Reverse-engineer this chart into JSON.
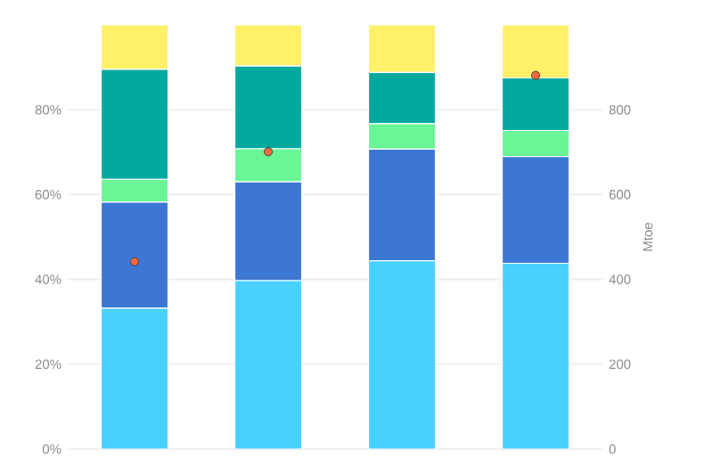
{
  "chart_data": {
    "type": "bar",
    "stacked": true,
    "categories": [
      null,
      null,
      null,
      null
    ],
    "series": [
      {
        "color": "#48d1ff",
        "values": [
          33.2,
          39.7,
          44.4,
          43.8
        ]
      },
      {
        "color": "#3d77d4",
        "values": [
          25.0,
          23.3,
          26.3,
          25.2
        ]
      },
      {
        "color": "#6af596",
        "values": [
          5.4,
          7.8,
          6.0,
          6.1
        ]
      },
      {
        "color": "#00a99d",
        "values": [
          25.9,
          19.5,
          12.1,
          12.4
        ]
      },
      {
        "color": "#fff06a",
        "values": [
          10.5,
          9.7,
          11.2,
          12.5
        ]
      },
      {
        "type": "scatter",
        "axis": "y2",
        "color": "#f4683f",
        "values": [
          442,
          701,
          null,
          881
        ]
      }
    ],
    "ylim": [
      0,
      100
    ],
    "yticks": [
      {
        "value": 0,
        "label": "0%"
      },
      {
        "value": 20,
        "label": "20%"
      },
      {
        "value": 40,
        "label": "40%"
      },
      {
        "value": 60,
        "label": "60%"
      },
      {
        "value": 80,
        "label": "80%"
      }
    ],
    "y2lim": [
      0,
      1000
    ],
    "y2ticks": [
      0,
      200,
      400,
      600,
      800
    ],
    "y2label": "Mtoe",
    "grid": "y",
    "marker": "circle"
  }
}
